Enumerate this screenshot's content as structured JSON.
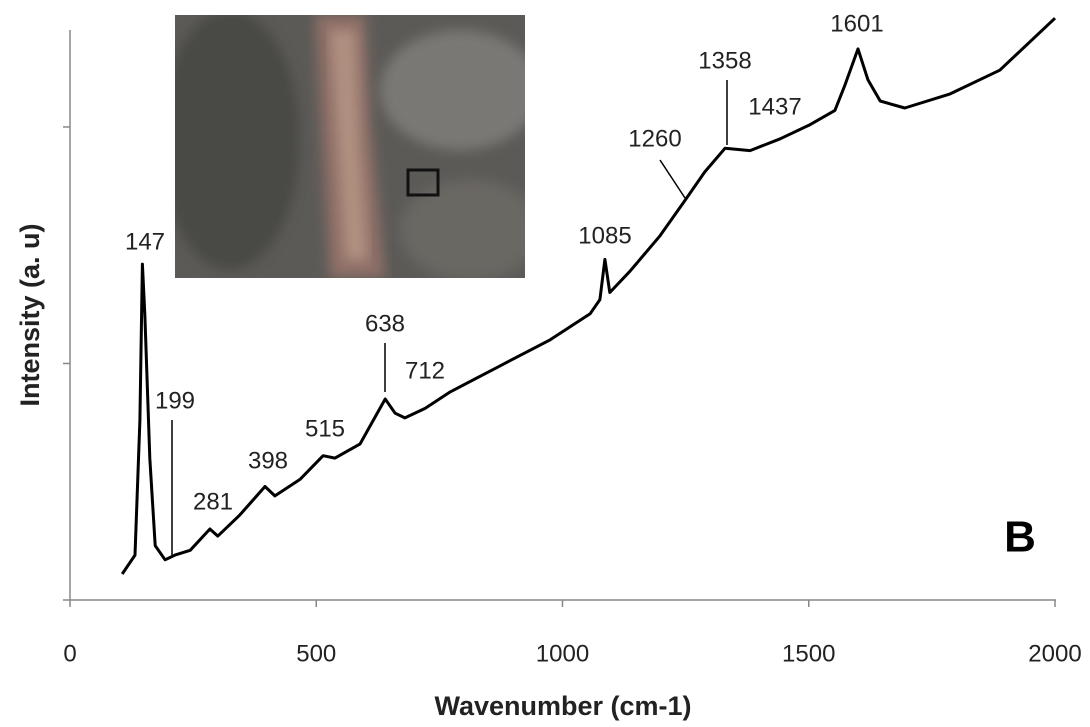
{
  "chart_data": {
    "type": "line",
    "xlabel": "Wavenumber (cm-1)",
    "ylabel": "Intensity (a. u)",
    "panel_label": "B",
    "xlim": [
      0,
      2000
    ],
    "xticks": [
      0,
      500,
      1000,
      1500,
      2000
    ],
    "ylim": [
      0,
      2.41
    ],
    "yticks": [
      0,
      1,
      2
    ],
    "series": [
      {
        "color": "#000000",
        "x": [
          106,
          132,
          142,
          147,
          152,
          162,
          173,
          193,
          213,
          244,
          284,
          300,
          345,
          396,
          416,
          467,
          514,
          538,
          589,
          640,
          660,
          680,
          721,
          772,
          873,
          975,
          1056,
          1076,
          1086,
          1096,
          1137,
          1198,
          1249,
          1289,
          1330,
          1381,
          1442,
          1503,
          1553,
          1574,
          1600,
          1620,
          1645,
          1695,
          1787,
          1888,
          2000
        ],
        "values": [
          0.11,
          0.19,
          0.76,
          1.42,
          1.2,
          0.6,
          0.23,
          0.17,
          0.19,
          0.21,
          0.3,
          0.27,
          0.36,
          0.48,
          0.44,
          0.51,
          0.61,
          0.6,
          0.66,
          0.85,
          0.79,
          0.77,
          0.81,
          0.88,
          0.99,
          1.1,
          1.21,
          1.27,
          1.44,
          1.3,
          1.39,
          1.54,
          1.69,
          1.81,
          1.91,
          1.9,
          1.95,
          2.01,
          2.07,
          2.18,
          2.33,
          2.2,
          2.11,
          2.08,
          2.14,
          2.24,
          2.46
        ]
      }
    ],
    "annotations": [
      "147",
      "199",
      "281",
      "398",
      "515",
      "638",
      "712",
      "1085",
      "1260",
      "1358",
      "1437",
      "1601"
    ]
  }
}
